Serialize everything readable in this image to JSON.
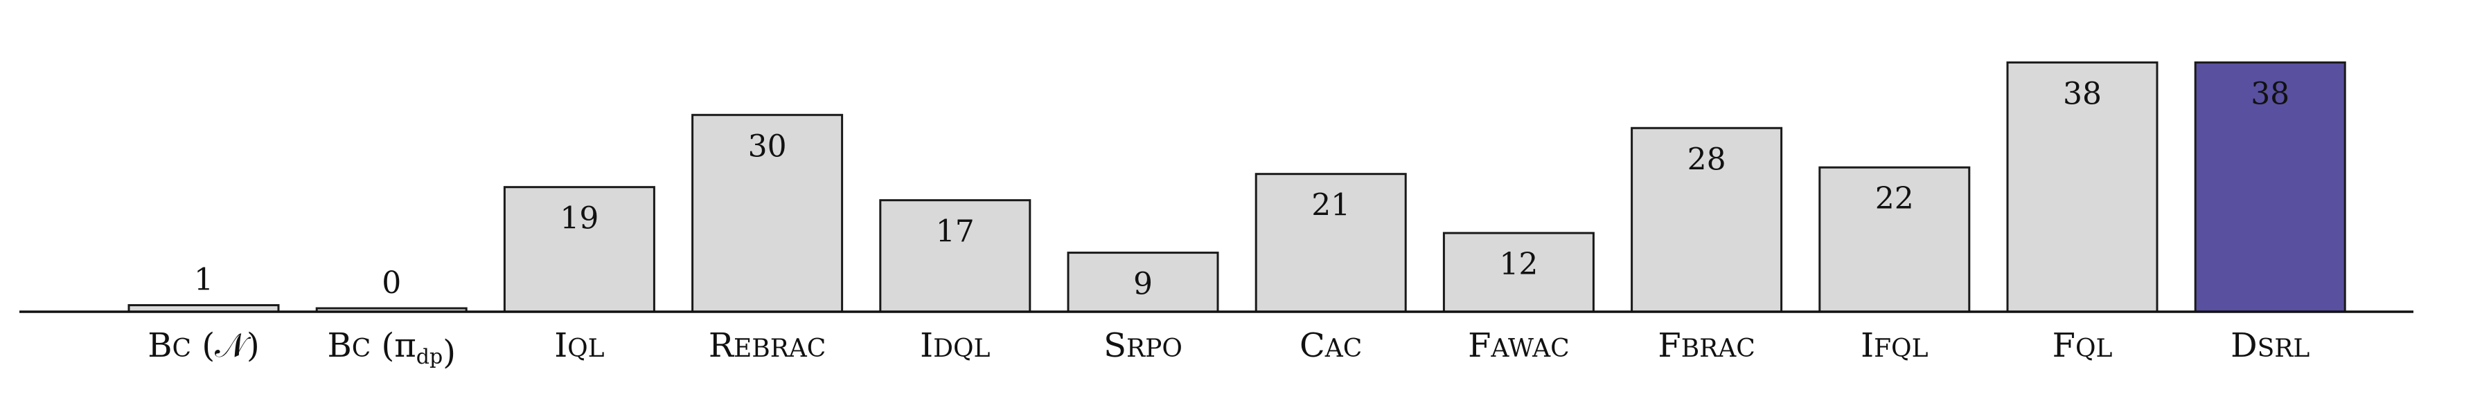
{
  "chart_data": {
    "type": "bar",
    "title": "",
    "xlabel": "",
    "ylabel": "",
    "ylim": [
      0,
      40
    ],
    "grid": false,
    "categories": [
      {
        "parts": [
          {
            "t": "B",
            "s": "n"
          },
          {
            "t": "C",
            "s": "sc"
          },
          {
            "t": " (",
            "s": "n"
          },
          {
            "t": "𝒩",
            "s": "n"
          },
          {
            "t": ")",
            "s": "n"
          }
        ]
      },
      {
        "parts": [
          {
            "t": "B",
            "s": "n"
          },
          {
            "t": "C",
            "s": "sc"
          },
          {
            "t": " (π",
            "s": "n"
          },
          {
            "t": "dp",
            "s": "sub"
          },
          {
            "t": ")",
            "s": "n"
          }
        ]
      },
      {
        "parts": [
          {
            "t": "I",
            "s": "n"
          },
          {
            "t": "QL",
            "s": "sc"
          }
        ]
      },
      {
        "parts": [
          {
            "t": "R",
            "s": "n"
          },
          {
            "t": "EBRAC",
            "s": "sc"
          }
        ]
      },
      {
        "parts": [
          {
            "t": "I",
            "s": "n"
          },
          {
            "t": "DQL",
            "s": "sc"
          }
        ]
      },
      {
        "parts": [
          {
            "t": "S",
            "s": "n"
          },
          {
            "t": "RPO",
            "s": "sc"
          }
        ]
      },
      {
        "parts": [
          {
            "t": "C",
            "s": "n"
          },
          {
            "t": "AC",
            "s": "sc"
          }
        ]
      },
      {
        "parts": [
          {
            "t": "F",
            "s": "n"
          },
          {
            "t": "AWAC",
            "s": "sc"
          }
        ]
      },
      {
        "parts": [
          {
            "t": "F",
            "s": "n"
          },
          {
            "t": "BRAC",
            "s": "sc"
          }
        ]
      },
      {
        "parts": [
          {
            "t": "I",
            "s": "n"
          },
          {
            "t": "FQL",
            "s": "sc"
          }
        ]
      },
      {
        "parts": [
          {
            "t": "F",
            "s": "n"
          },
          {
            "t": "QL",
            "s": "sc"
          }
        ]
      },
      {
        "parts": [
          {
            "t": "D",
            "s": "n"
          },
          {
            "t": "SRL",
            "s": "sc"
          }
        ]
      }
    ],
    "values": [
      1,
      0,
      19,
      30,
      17,
      9,
      21,
      12,
      28,
      22,
      38,
      38
    ],
    "colors": {
      "default": "#d9d9d9",
      "highlight": "#5950a0",
      "highlight_index": 11,
      "edge": "#1a1a1a",
      "label_dark": "#111111"
    }
  }
}
